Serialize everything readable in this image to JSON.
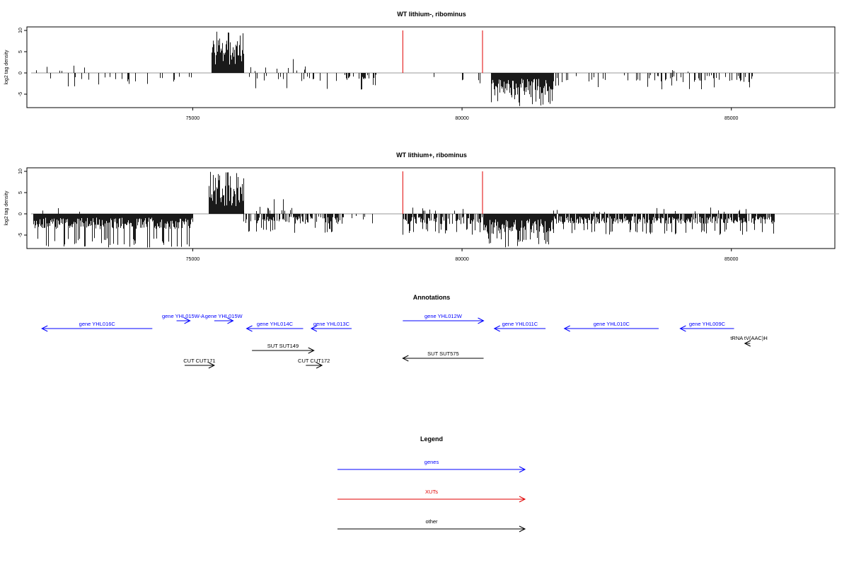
{
  "chart_data": [
    {
      "type": "bar",
      "title": "WT lithium-, ribominus",
      "xlabel": "",
      "ylabel": "log2 tag density",
      "xlim": [
        72000,
        87000
      ],
      "ylim": [
        -8,
        10
      ],
      "yticks": [
        10,
        5,
        0,
        -5
      ],
      "xticks": [
        75000,
        80000,
        85000
      ],
      "xtick_labels": [
        "75000",
        "80000",
        "85000"
      ],
      "markers": [
        78900,
        80380
      ],
      "marker_color": "#e00000",
      "bar_color": "#000000",
      "baseline_color": "#9a9a9a",
      "segments": [
        {
          "start": 72100,
          "end": 75000,
          "density": 0.15,
          "sign": -1,
          "mean": -1.8,
          "max": -3.5
        },
        {
          "start": 72100,
          "end": 73200,
          "density": 0.05,
          "sign": 1,
          "mean": 1.2,
          "max": 2.3
        },
        {
          "start": 75350,
          "end": 75950,
          "density": 1.0,
          "sign": 1,
          "mean": 6.5,
          "max": 10
        },
        {
          "start": 75950,
          "end": 78400,
          "density": 0.18,
          "sign": -1,
          "mean": -1.6,
          "max": -4
        },
        {
          "start": 76000,
          "end": 77100,
          "density": 0.08,
          "sign": 1,
          "mean": 1.4,
          "max": 3.5
        },
        {
          "start": 78400,
          "end": 79700,
          "density": 0.02,
          "sign": -1,
          "mean": -1.2,
          "max": -2.5
        },
        {
          "start": 79700,
          "end": 80400,
          "density": 0.05,
          "sign": -1,
          "mean": -1.5,
          "max": -3
        },
        {
          "start": 80550,
          "end": 81700,
          "density": 1.0,
          "sign": -1,
          "mean": -4.5,
          "max": -8
        },
        {
          "start": 81700,
          "end": 85400,
          "density": 0.22,
          "sign": -1,
          "mean": -1.8,
          "max": -4
        },
        {
          "start": 83700,
          "end": 84200,
          "density": 0.03,
          "sign": 1,
          "mean": 0.8,
          "max": 1.5
        }
      ]
    },
    {
      "type": "bar",
      "title": "WT lithium+, ribominus",
      "xlabel": "",
      "ylabel": "log2 tag density",
      "xlim": [
        72000,
        87000
      ],
      "ylim": [
        -8,
        10
      ],
      "yticks": [
        10,
        5,
        0,
        -5
      ],
      "xticks": [
        75000,
        80000,
        85000
      ],
      "xtick_labels": [
        "75000",
        "80000",
        "85000"
      ],
      "markers": [
        78900,
        80380
      ],
      "marker_color": "#e00000",
      "bar_color": "#000000",
      "baseline_color": "#9a9a9a",
      "segments": [
        {
          "start": 72050,
          "end": 75000,
          "density": 1.0,
          "sign": -1,
          "mean": -3.0,
          "max": -8
        },
        {
          "start": 72050,
          "end": 73000,
          "density": 0.08,
          "sign": 1,
          "mean": 1.2,
          "max": 2
        },
        {
          "start": 75300,
          "end": 75950,
          "density": 1.0,
          "sign": 1,
          "mean": 6.0,
          "max": 10
        },
        {
          "start": 75950,
          "end": 77800,
          "density": 0.6,
          "sign": -1,
          "mean": -2.0,
          "max": -4.5
        },
        {
          "start": 75950,
          "end": 77000,
          "density": 0.15,
          "sign": 1,
          "mean": 1.5,
          "max": 3.5
        },
        {
          "start": 77800,
          "end": 78400,
          "density": 0.1,
          "sign": -1,
          "mean": -1.2,
          "max": -2.5
        },
        {
          "start": 78900,
          "end": 80380,
          "density": 0.7,
          "sign": -1,
          "mean": -2.0,
          "max": -5
        },
        {
          "start": 79000,
          "end": 80200,
          "density": 0.1,
          "sign": 1,
          "mean": 1.3,
          "max": 3
        },
        {
          "start": 80400,
          "end": 81700,
          "density": 1.0,
          "sign": -1,
          "mean": -4.0,
          "max": -8
        },
        {
          "start": 81700,
          "end": 85800,
          "density": 0.8,
          "sign": -1,
          "mean": -2.0,
          "max": -5
        },
        {
          "start": 81500,
          "end": 85500,
          "density": 0.03,
          "sign": 1,
          "mean": 0.8,
          "max": 1.5
        }
      ]
    }
  ],
  "annotations": {
    "title": "Annotations",
    "genes_color": "#0000ff",
    "other_color": "#000000",
    "items": [
      {
        "label": "gene YHL016C",
        "start": 72200,
        "end": 74250,
        "row": 1,
        "dir": -1,
        "kind": "gene"
      },
      {
        "label": "gene YHL015W-A",
        "start": 74700,
        "end": 74950,
        "row": 0,
        "dir": 1,
        "kind": "gene"
      },
      {
        "label": "gene YHL015W",
        "start": 75400,
        "end": 75750,
        "row": 0,
        "dir": 1,
        "kind": "gene"
      },
      {
        "label": "gene YHL014C",
        "start": 76000,
        "end": 77050,
        "row": 1,
        "dir": -1,
        "kind": "gene"
      },
      {
        "label": "gene YHL013C",
        "start": 77200,
        "end": 77950,
        "row": 1,
        "dir": -1,
        "kind": "gene"
      },
      {
        "label": "gene YHL012W",
        "start": 78900,
        "end": 80400,
        "row": 0,
        "dir": 1,
        "kind": "gene"
      },
      {
        "label": "gene YHL011C",
        "start": 80600,
        "end": 81550,
        "row": 1,
        "dir": -1,
        "kind": "gene"
      },
      {
        "label": "gene YHL010C",
        "start": 81900,
        "end": 83650,
        "row": 1,
        "dir": -1,
        "kind": "gene"
      },
      {
        "label": "gene YHL009C",
        "start": 84050,
        "end": 85050,
        "row": 1,
        "dir": -1,
        "kind": "gene"
      },
      {
        "label": "tRNA tV(AAC)H",
        "start": 85250,
        "end": 85350,
        "row": 2,
        "dir": -1,
        "kind": "other"
      },
      {
        "label": "SUT SUT149",
        "start": 76100,
        "end": 77250,
        "row": 3,
        "dir": 1,
        "kind": "other"
      },
      {
        "label": "SUT SUT575",
        "start": 78900,
        "end": 80400,
        "row": 4,
        "dir": -1,
        "kind": "other"
      },
      {
        "label": "CUT CUT171",
        "start": 74850,
        "end": 75400,
        "row": 5,
        "dir": 1,
        "kind": "other"
      },
      {
        "label": "CUT CUT172",
        "start": 77100,
        "end": 77400,
        "row": 5,
        "dir": 1,
        "kind": "other"
      }
    ]
  },
  "legend": {
    "title": "Legend",
    "items": [
      {
        "label": "genes",
        "color": "#0000ff"
      },
      {
        "label": "XUTs",
        "color": "#e00000"
      },
      {
        "label": "other",
        "color": "#000000"
      }
    ]
  }
}
